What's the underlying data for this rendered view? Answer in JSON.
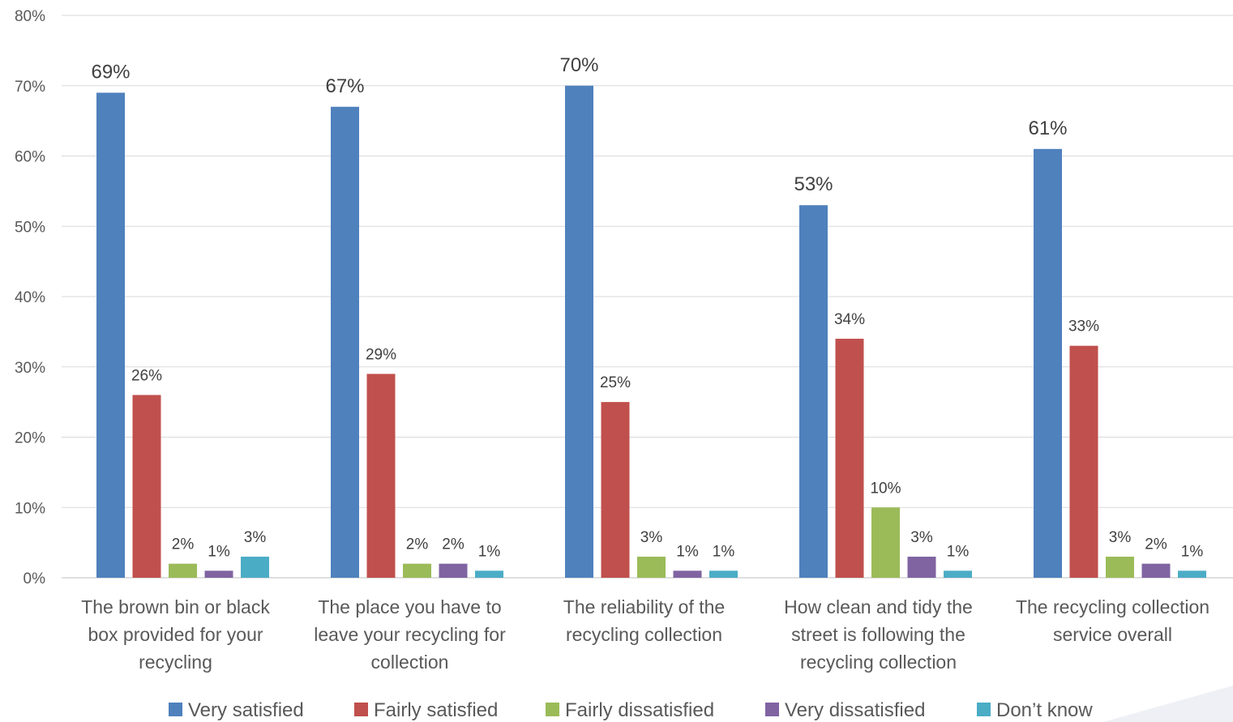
{
  "chart_data": {
    "type": "bar",
    "title": "",
    "xlabel": "",
    "ylabel": "",
    "ylim": [
      0,
      80
    ],
    "y_ticks": [
      "0%",
      "10%",
      "20%",
      "30%",
      "40%",
      "50%",
      "60%",
      "70%",
      "80%"
    ],
    "grid": true,
    "legend_position": "bottom",
    "categories": [
      [
        "The brown bin or black",
        "box provided for your",
        "recycling"
      ],
      [
        "The place you have to",
        "leave your recycling for",
        "collection"
      ],
      [
        "The reliability of the",
        "recycling collection"
      ],
      [
        "How clean and tidy the",
        "street is following the",
        "recycling collection"
      ],
      [
        "The recycling collection",
        "service overall"
      ]
    ],
    "series": [
      {
        "name": "Very satisfied",
        "color": "#4f81bd",
        "values": [
          69,
          67,
          70,
          53,
          61
        ],
        "labels": [
          "69%",
          "67%",
          "70%",
          "53%",
          "61%"
        ]
      },
      {
        "name": "Fairly satisfied",
        "color": "#c0504d",
        "values": [
          26,
          29,
          25,
          34,
          33
        ],
        "labels": [
          "26%",
          "29%",
          "25%",
          "34%",
          "33%"
        ]
      },
      {
        "name": "Fairly dissatisfied",
        "color": "#9bbb59",
        "values": [
          2,
          2,
          3,
          10,
          3
        ],
        "labels": [
          "2%",
          "2%",
          "3%",
          "10%",
          "3%"
        ]
      },
      {
        "name": "Very dissatisfied",
        "color": "#8064a2",
        "values": [
          1,
          2,
          1,
          3,
          2
        ],
        "labels": [
          "1%",
          "2%",
          "1%",
          "3%",
          "2%"
        ]
      },
      {
        "name": "Don’t know",
        "color": "#4bacc6",
        "values": [
          3,
          1,
          1,
          1,
          1
        ],
        "labels": [
          "3%",
          "1%",
          "1%",
          "1%",
          "1%"
        ]
      }
    ]
  }
}
